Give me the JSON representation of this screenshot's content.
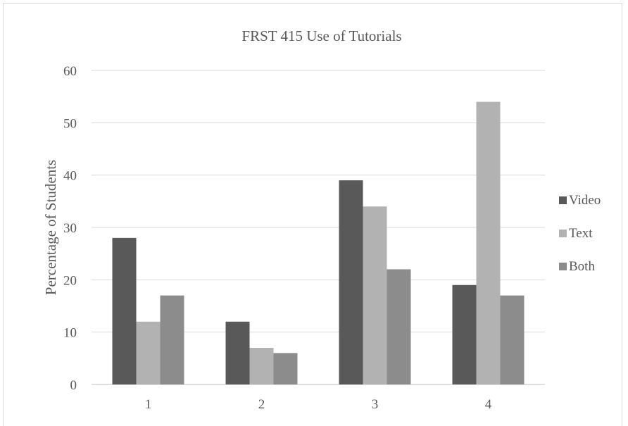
{
  "chart_data": {
    "type": "bar",
    "title": "FRST 415 Use of Tutorials",
    "xlabel": "",
    "ylabel": "Percentage of Students",
    "categories": [
      "1",
      "2",
      "3",
      "4"
    ],
    "ylim": [
      0,
      60
    ],
    "yticks": [
      0,
      10,
      20,
      30,
      40,
      50,
      60
    ],
    "grid": true,
    "legend_position": "right",
    "series": [
      {
        "name": "Video",
        "color": "#595959",
        "values": [
          28,
          12,
          39,
          19
        ]
      },
      {
        "name": "Text",
        "color": "#b2b2b2",
        "values": [
          12,
          7,
          34,
          54
        ]
      },
      {
        "name": "Both",
        "color": "#8c8c8c",
        "values": [
          17,
          6,
          22,
          17
        ]
      }
    ]
  }
}
